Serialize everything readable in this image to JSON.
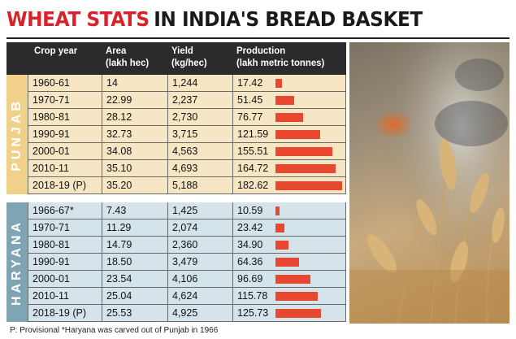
{
  "title": {
    "highlight": "WHEAT STATS",
    "rest": "IN INDIA'S BREAD BASKET"
  },
  "columns": [
    "Crop year",
    "Area\n(lakh hec)",
    "Yield\n(kg/hec)",
    "Production\n(lakh metric tonnes)"
  ],
  "footnote": "P: Provisional   *Haryana was carved out of Punjab in 1966",
  "colors": {
    "title_red": "#d9232b",
    "punjab_bg": "#f6e6c4",
    "haryana_bg": "#d5e4ea",
    "bar": "#e8482f"
  },
  "chart_data": {
    "type": "table",
    "bar_column": "Production (lakh metric tonnes)",
    "groups": [
      {
        "name": "PUNJAB",
        "rows": [
          {
            "year": "1960-61",
            "area": "14",
            "yield": "1,244",
            "production": "17.42",
            "value": 17.42
          },
          {
            "year": "1970-71",
            "area": "22.99",
            "yield": "2,237",
            "production": "51.45",
            "value": 51.45
          },
          {
            "year": "1980-81",
            "area": "28.12",
            "yield": "2,730",
            "production": "76.77",
            "value": 76.77
          },
          {
            "year": "1990-91",
            "area": "32.73",
            "yield": "3,715",
            "production": "121.59",
            "value": 121.59
          },
          {
            "year": "2000-01",
            "area": "34.08",
            "yield": "4,563",
            "production": "155.51",
            "value": 155.51
          },
          {
            "year": "2010-11",
            "area": "35.10",
            "yield": "4,693",
            "production": "164.72",
            "value": 164.72
          },
          {
            "year": "2018-19 (P)",
            "area": "35.20",
            "yield": "5,188",
            "production": "182.62",
            "value": 182.62
          }
        ]
      },
      {
        "name": "HARYANA",
        "rows": [
          {
            "year": "1966-67*",
            "area": "7.43",
            "yield": "1,425",
            "production": "10.59",
            "value": 10.59
          },
          {
            "year": "1970-71",
            "area": "11.29",
            "yield": "2,074",
            "production": "23.42",
            "value": 23.42
          },
          {
            "year": "1980-81",
            "area": "14.79",
            "yield": "2,360",
            "production": "34.90",
            "value": 34.9
          },
          {
            "year": "1990-91",
            "area": "18.50",
            "yield": "3,479",
            "production": "64.36",
            "value": 64.36
          },
          {
            "year": "2000-01",
            "area": "23.54",
            "yield": "4,106",
            "production": "96.69",
            "value": 96.69
          },
          {
            "year": "2010-11",
            "area": "25.04",
            "yield": "4,624",
            "production": "115.78",
            "value": 115.78
          },
          {
            "year": "2018-19 (P)",
            "area": "25.53",
            "yield": "4,925",
            "production": "125.73",
            "value": 125.73
          }
        ]
      }
    ]
  }
}
